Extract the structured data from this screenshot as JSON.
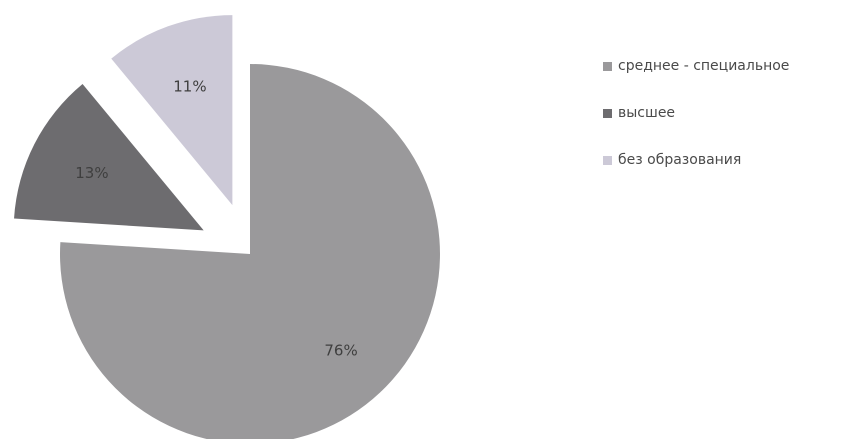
{
  "chart_data": {
    "type": "pie",
    "title": "",
    "categories": [
      "среднее - специальное",
      "высшее",
      "без образования"
    ],
    "values": [
      76,
      13,
      11
    ],
    "labels": [
      "76%",
      "13%",
      "11%"
    ],
    "colors": [
      "#9a999b",
      "#6d6c6f",
      "#ccc9d7"
    ],
    "exploded": [
      false,
      true,
      true
    ],
    "legend_placement": "right"
  }
}
